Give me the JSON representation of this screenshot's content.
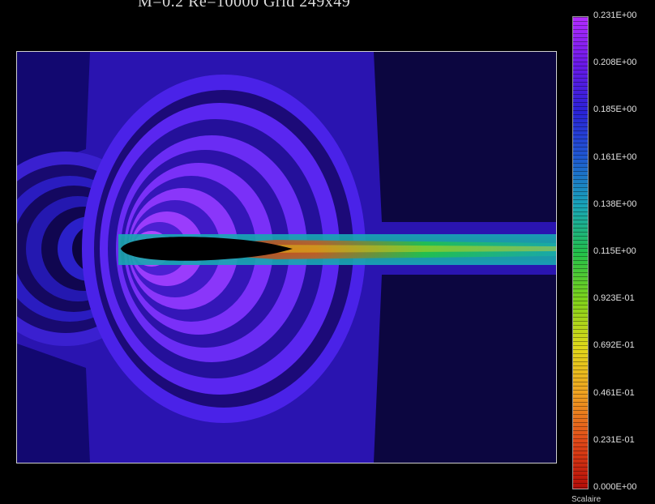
{
  "title": "M=0.2  Re=10000  Grid 249x49",
  "colorbar": {
    "label": "Scalaire",
    "ticks": [
      "0.231E+00",
      "0.208E+00",
      "0.185E+00",
      "0.161E+00",
      "0.138E+00",
      "0.115E+00",
      "0.923E-01",
      "0.692E-01",
      "0.461E-01",
      "0.231E-01",
      "0.000E+00"
    ],
    "colors": [
      "#b42cff",
      "#6a18e8",
      "#2a22d8",
      "#1e5ad0",
      "#18a4b8",
      "#22c04a",
      "#7ed21a",
      "#e0d81a",
      "#f0a020",
      "#e04818",
      "#b40c08"
    ]
  },
  "chart_data": {
    "type": "heatmap",
    "title": "M=0.2  Re=10000  Grid 249x49",
    "colorbar_label": "Scalaire",
    "value_range": [
      0.0,
      0.231
    ],
    "colorbar_ticks": [
      0.231,
      0.208,
      0.185,
      0.161,
      0.138,
      0.115,
      0.0923,
      0.0692,
      0.0461,
      0.0231,
      0.0
    ],
    "description_values": {
      "free_stream_level": 0.2,
      "wake_core_level": 0.0
    }
  }
}
